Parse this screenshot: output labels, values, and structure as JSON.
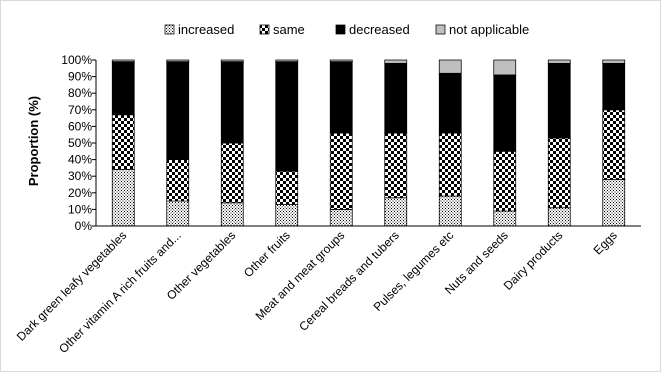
{
  "chart_data": {
    "type": "bar",
    "stacked": true,
    "categories": [
      "Dark green leafy vegetables",
      "Other vitamin A rich fruits and...",
      "Other vegetables",
      "Other fruits",
      "Meat and meat groups",
      "Cereal breads and tubers",
      "Pulses, legumes etc",
      "Nuts and seeds",
      "Dairy products",
      "Eggs"
    ],
    "series": [
      {
        "name": "increased",
        "color": "#ffffff",
        "pattern": "dots",
        "values": [
          34,
          15,
          14,
          13,
          10,
          17,
          18,
          9,
          11,
          28
        ]
      },
      {
        "name": "same",
        "color": "#000000",
        "pattern": "checker",
        "values": [
          33,
          25,
          36,
          20,
          46,
          39,
          38,
          36,
          42,
          42
        ]
      },
      {
        "name": "decreased",
        "color": "#000000",
        "pattern": "solid",
        "values": [
          32,
          59,
          49,
          66,
          43,
          42,
          36,
          46,
          45,
          28
        ]
      },
      {
        "name": "not applicable",
        "color": "#bfbfbf",
        "pattern": "solid",
        "values": [
          1,
          1,
          1,
          1,
          1,
          2,
          8,
          9,
          2,
          2
        ]
      }
    ],
    "yticks": [
      "0%",
      "10%",
      "20%",
      "30%",
      "40%",
      "50%",
      "60%",
      "70%",
      "80%",
      "90%",
      "100%"
    ],
    "ylim": [
      0,
      100
    ],
    "ylabel": "Proportion (%)",
    "xlabel": "",
    "title": "",
    "legend": "top",
    "grid": false
  }
}
